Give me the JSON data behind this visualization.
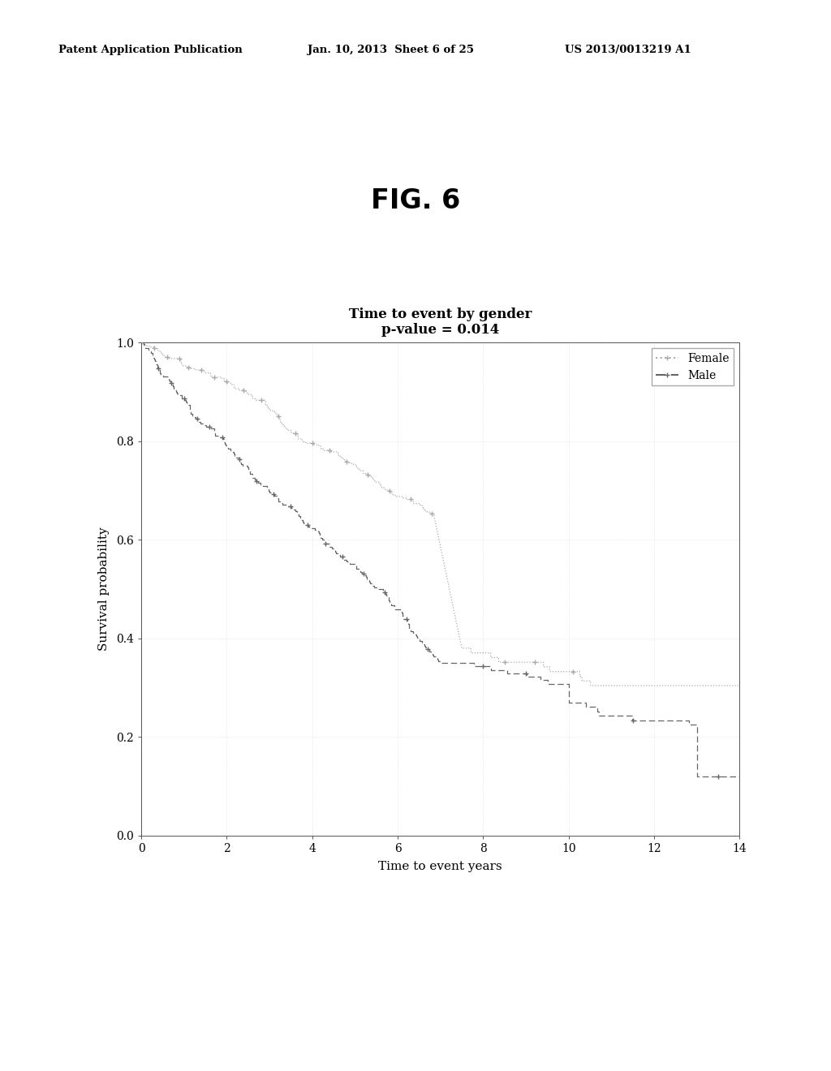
{
  "title_line1": "Time to event by gender",
  "title_line2": "p-value = 0.014",
  "xlabel": "Time to event years",
  "ylabel": "Survival probability",
  "fig_label": "FIG. 6",
  "patent_left": "Patent Application Publication",
  "patent_mid": "Jan. 10, 2013  Sheet 6 of 25",
  "patent_right": "US 2013/0013219 A1",
  "xlim": [
    0,
    14
  ],
  "ylim": [
    0.0,
    1.0
  ],
  "xticks": [
    0,
    2,
    4,
    6,
    8,
    10,
    12,
    14
  ],
  "yticks": [
    0.0,
    0.2,
    0.4,
    0.6,
    0.8,
    1.0
  ],
  "ytick_labels": [
    "0.0",
    "0.2",
    "0.4",
    "0.6",
    "0.8",
    "1.0"
  ],
  "background_color": "#ffffff",
  "line_color_female": "#aaaaaa",
  "line_color_male": "#666666"
}
